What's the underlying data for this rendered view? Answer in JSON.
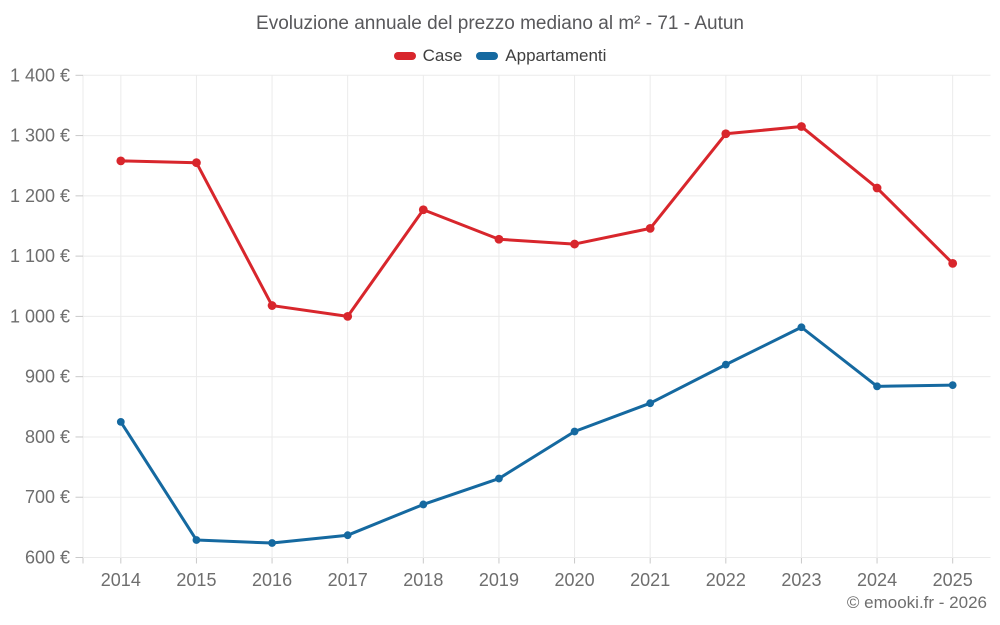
{
  "page": {
    "title": "Evoluzione annuale del prezzo mediano al m² - 71 - Autun",
    "copyright": "© emooki.fr - 2026"
  },
  "chart_data": {
    "type": "line",
    "title": "Evoluzione annuale del prezzo mediano al m² - 71 - Autun",
    "categories": [
      "2014",
      "2015",
      "2016",
      "2017",
      "2018",
      "2019",
      "2020",
      "2021",
      "2022",
      "2023",
      "2024",
      "2025"
    ],
    "series": [
      {
        "name": "Case",
        "color": "#d8262c",
        "values": [
          1258,
          1255,
          1018,
          1000,
          1177,
          1128,
          1120,
          1146,
          1303,
          1315,
          1213,
          1088
        ]
      },
      {
        "name": "Appartamenti",
        "color": "#1569a0",
        "values": [
          825,
          629,
          624,
          637,
          688,
          731,
          809,
          856,
          920,
          982,
          884,
          886
        ]
      }
    ],
    "xlabel": "",
    "ylabel": "",
    "ylim": [
      600,
      1400
    ],
    "ytick_step": 100,
    "ytick_format": "{value} €",
    "grid": true,
    "legend_position": "top"
  },
  "style": {
    "background": "#ffffff",
    "grid_color": "#ebebeb",
    "tick_color": "#c9c9c9",
    "axis_label_color": "#6e6e6e",
    "title_color": "#58585b",
    "legend_text_color": "#3f3f3f",
    "copyright_color": "#6e6e6e"
  }
}
